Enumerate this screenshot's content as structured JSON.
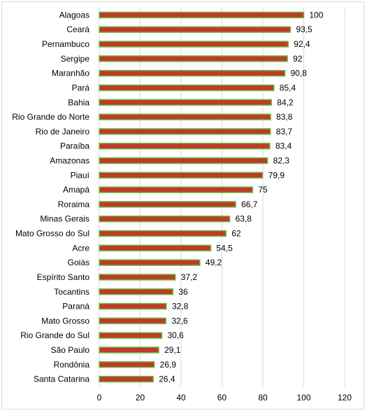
{
  "chart_data": {
    "type": "bar",
    "orientation": "horizontal",
    "categories": [
      "Alagoas",
      "Ceará",
      "Pernambuco",
      "Sergipe",
      "Maranhão",
      "Pará",
      "Bahia",
      "Rio Grande do Norte",
      "Rio de Janeiro",
      "Paraíba",
      "Amazonas",
      "Piauí",
      "Amapá",
      "Roraima",
      "Minas Gerais",
      "Mato Grosso do Sul",
      "Acre",
      "Goiás",
      "Espírito Santo",
      "Tocantins",
      "Paraná",
      "Mato Grosso",
      "Rio Grande do Sul",
      "São Paulo",
      "Rondônia",
      "Santa Catarina"
    ],
    "values": [
      100,
      93.5,
      92.4,
      92,
      90.8,
      85.4,
      84.2,
      83.8,
      83.7,
      83.4,
      82.3,
      79.9,
      75,
      66.7,
      63.8,
      62,
      54.5,
      49.2,
      37.2,
      36,
      32.8,
      32.6,
      30.6,
      29.1,
      26.9,
      26.4
    ],
    "value_labels": [
      "100",
      "93,5",
      "92,4",
      "92",
      "90,8",
      "85,4",
      "84,2",
      "83,8",
      "83,7",
      "83,4",
      "82,3",
      "79,9",
      "75",
      "66,7",
      "63,8",
      "62",
      "54,5",
      "49,2",
      "37,2",
      "36",
      "32,8",
      "32,6",
      "30,6",
      "29,1",
      "26,9",
      "26,4"
    ],
    "x_ticks": [
      0,
      20,
      40,
      60,
      80,
      100,
      120
    ],
    "xlim": [
      0,
      120
    ],
    "grid": true,
    "legend": "none",
    "bar_fill": "#c0392b",
    "bar_stroke": "#6abf3c",
    "grid_color": "#d9d9d9"
  }
}
